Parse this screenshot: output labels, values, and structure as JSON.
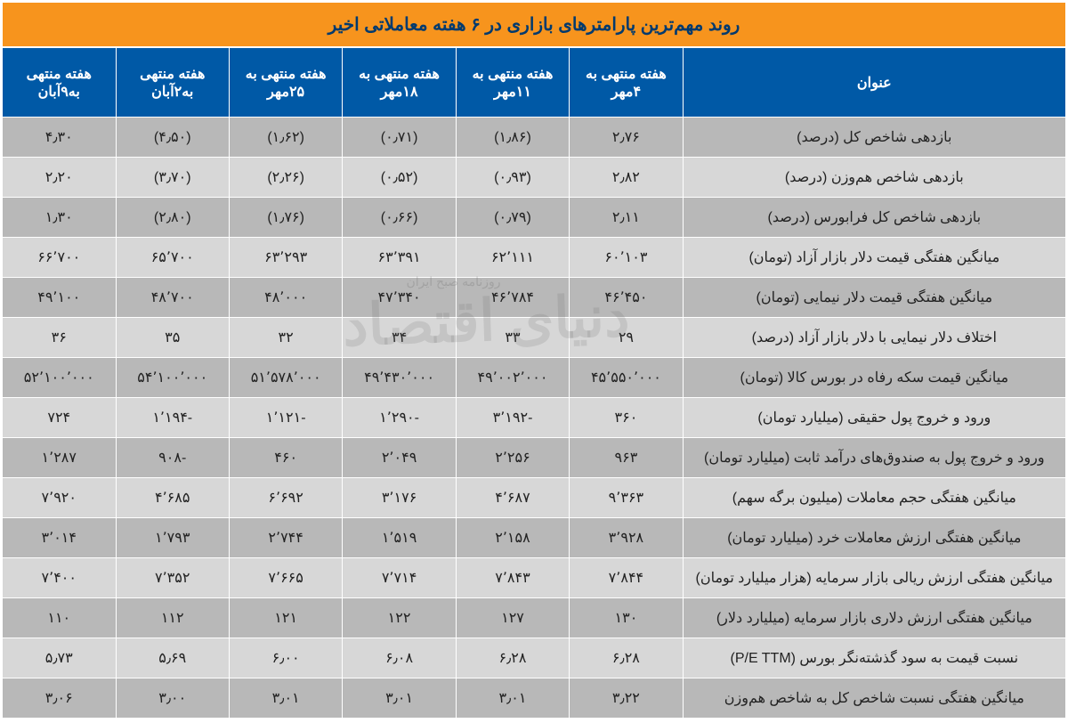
{
  "title": "روند مهم‌ترین پارامترهای بازاری در ۶ هفته معاملاتی اخیر",
  "headers": {
    "main": "عنوان",
    "weeks": [
      "هفته منتهی به ۴مهر",
      "هفته منتهی به ۱۱مهر",
      "هفته منتهی به ۱۸مهر",
      "هفته منتهی به ۲۵مهر",
      "هفته منتهی به۲آبان",
      "هفته منتهی به۹آبان"
    ]
  },
  "rows": [
    {
      "label": "بازدهی شاخص کل (درصد)",
      "v": [
        "۲٫۷۶",
        "(۱٫۸۶)",
        "(۰٫۷۱)",
        "(۱٫۶۲)",
        "(۴٫۵۰)",
        "۴٫۳۰"
      ]
    },
    {
      "label": "بازدهی شاخص هم‌وزن (درصد)",
      "v": [
        "۲٫۸۲",
        "(۰٫۹۳)",
        "(۰٫۵۲)",
        "(۲٫۲۶)",
        "(۳٫۷۰)",
        "۲٫۲۰"
      ]
    },
    {
      "label": "بازدهی شاخص کل فرابورس (درصد)",
      "v": [
        "۲٫۱۱",
        "(۰٫۷۹)",
        "(۰٫۶۶)",
        "(۱٫۷۶)",
        "(۲٫۸۰)",
        "۱٫۳۰"
      ]
    },
    {
      "label": "میانگین هفتگی قیمت دلار بازار آزاد (تومان)",
      "v": [
        "۶۰٬۱۰۳",
        "۶۲٬۱۱۱",
        "۶۳٬۳۹۱",
        "۶۳٬۲۹۳",
        "۶۵٬۷۰۰",
        "۶۶٬۷۰۰"
      ]
    },
    {
      "label": "میانگین هفتگی قیمت دلار نیمایی (تومان)",
      "v": [
        "۴۶٬۴۵۰",
        "۴۶٬۷۸۴",
        "۴۷٬۳۴۰",
        "۴۸٬۰۰۰",
        "۴۸٬۷۰۰",
        "۴۹٬۱۰۰"
      ]
    },
    {
      "label": "اختلاف دلار نیمایی با دلار بازار آزاد (درصد)",
      "v": [
        "۲۹",
        "۳۳",
        "۳۴",
        "۳۲",
        "۳۵",
        "۳۶"
      ]
    },
    {
      "label": "میانگین قیمت سکه رفاه در بورس کالا (تومان)",
      "v": [
        "۴۵٬۵۵۰٬۰۰۰",
        "۴۹٬۰۰۲٬۰۰۰",
        "۴۹٬۴۳۰٬۰۰۰",
        "۵۱٬۵۷۸٬۰۰۰",
        "۵۴٬۱۰۰٬۰۰۰",
        "۵۲٬۱۰۰٬۰۰۰"
      ]
    },
    {
      "label": "ورود و خروج پول حقیقی (میلیارد تومان)",
      "v": [
        "۳۶۰",
        "-۳٬۱۹۲",
        "-۱٬۲۹۰",
        "-۱٬۱۲۱",
        "-۱٬۱۹۴",
        "۷۲۴"
      ]
    },
    {
      "label": "ورود و خروج پول به صندوق‌های درآمد ثابت (میلیارد تومان)",
      "v": [
        "۹۶۳",
        "۲٬۲۵۶",
        "۲٬۰۴۹",
        "۴۶۰",
        "-۹۰۸",
        "۱٬۲۸۷"
      ]
    },
    {
      "label": "میانگین هفتگی حجم معاملات (میلیون برگه سهم)",
      "v": [
        "۹٬۳۶۳",
        "۴٬۶۸۷",
        "۳٬۱۷۶",
        "۶٬۶۹۲",
        "۴٬۶۸۵",
        "۷٬۹۲۰"
      ]
    },
    {
      "label": "میانگین هفتگی ارزش معاملات خرد (میلیارد تومان)",
      "v": [
        "۳٬۹۲۸",
        "۲٬۱۵۸",
        "۱٬۵۱۹",
        "۲٬۷۴۴",
        "۱٬۷۹۳",
        "۳٬۰۱۴"
      ]
    },
    {
      "label": "میانگین هفتگی ارزش ریالی بازار سرمایه  (هزار میلیارد تومان)",
      "v": [
        "۷٬۸۴۴",
        "۷٬۸۴۳",
        "۷٬۷۱۴",
        "۷٬۶۶۵",
        "۷٬۳۵۲",
        "۷٬۴۰۰"
      ]
    },
    {
      "label": "میانگین هفتگی ارزش دلاری بازار سرمایه (میلیارد دلار)",
      "v": [
        "۱۳۰",
        "۱۲۷",
        "۱۲۲",
        "۱۲۱",
        "۱۱۲",
        "۱۱۰"
      ]
    },
    {
      "label": "نسبت قیمت به سود گذشته‌نگر بورس (P/E TTM)",
      "v": [
        "۶٫۲۸",
        "۶٫۲۸",
        "۶٫۰۸",
        "۶٫۰۰",
        "۵٫۶۹",
        "۵٫۷۳"
      ]
    },
    {
      "label": "میانگین هفتگی نسبت شاخص کل به شاخص هم‌وزن",
      "v": [
        "۳٫۲۲",
        "۳٫۰۱",
        "۳٫۰۱",
        "۳٫۰۱",
        "۳٫۰۰",
        "۳٫۰۶"
      ]
    }
  ],
  "watermark": {
    "main": "دنیای اقتصاد",
    "sub": "روزنامه صبح ایران"
  },
  "style": {
    "title_bg": "#f7941d",
    "title_fg": "#003a6e",
    "header_bg": "#0059a6",
    "header_fg": "#ffffff",
    "row_even_bg": "#d7d7d7",
    "row_odd_bg": "#b8b8b8",
    "border_color": "#ffffff",
    "text_color": "#222222",
    "title_fontsize": 20,
    "header_fontsize": 16,
    "cell_fontsize": 16
  }
}
